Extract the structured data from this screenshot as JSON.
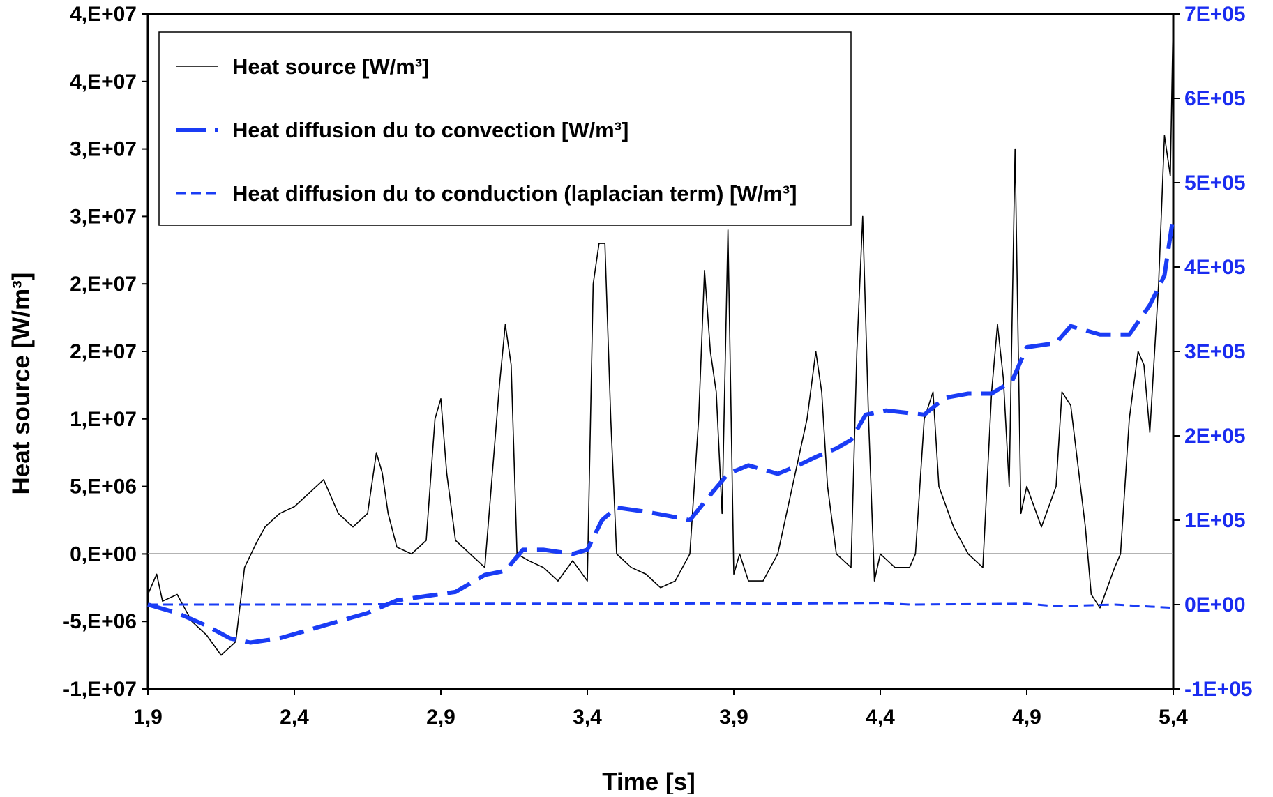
{
  "chart_data": {
    "type": "line",
    "xlabel": "Time [s]",
    "ylabel": "Heat source [W/m³]",
    "xlim": [
      1.9,
      5.4
    ],
    "ylim": [
      -10000000,
      40000000
    ],
    "y2lim": [
      -100000,
      700000
    ],
    "x_ticks": [
      "1,9",
      "2,4",
      "2,9",
      "3,4",
      "3,9",
      "4,4",
      "4,9",
      "5,4"
    ],
    "y_ticks": [
      "4,E+07",
      "4,E+07",
      "3,E+07",
      "3,E+07",
      "2,E+07",
      "2,E+07",
      "1,E+07",
      "5,E+06",
      "0,E+00",
      "-5,E+06",
      "-1,E+07"
    ],
    "y2_ticks": [
      "7E+05",
      "6E+05",
      "5E+05",
      "4E+05",
      "3E+05",
      "2E+05",
      "1E+05",
      "0E+00",
      "-1E+05"
    ],
    "grid": false,
    "legend_position": "top-left",
    "colors": {
      "source": "#000000",
      "convection": "#1a3cf5",
      "conduction": "#1a3cf5",
      "right_axis": "#1a2cf0",
      "zero_line": "#9a9a9a"
    },
    "series": [
      {
        "name": "Heat source [W/m³]",
        "axis": "left",
        "style": "thin-solid",
        "x": [
          1.9,
          1.93,
          1.95,
          2.0,
          2.05,
          2.1,
          2.15,
          2.2,
          2.23,
          2.27,
          2.3,
          2.35,
          2.4,
          2.45,
          2.5,
          2.55,
          2.6,
          2.65,
          2.68,
          2.7,
          2.72,
          2.75,
          2.8,
          2.85,
          2.88,
          2.9,
          2.92,
          2.95,
          3.0,
          3.05,
          3.1,
          3.12,
          3.14,
          3.16,
          3.2,
          3.25,
          3.3,
          3.35,
          3.4,
          3.42,
          3.44,
          3.46,
          3.48,
          3.5,
          3.55,
          3.6,
          3.65,
          3.7,
          3.75,
          3.78,
          3.8,
          3.82,
          3.84,
          3.86,
          3.88,
          3.9,
          3.92,
          3.95,
          4.0,
          4.05,
          4.1,
          4.15,
          4.18,
          4.2,
          4.22,
          4.25,
          4.3,
          4.32,
          4.34,
          4.36,
          4.38,
          4.4,
          4.45,
          4.5,
          4.52,
          4.55,
          4.58,
          4.6,
          4.65,
          4.7,
          4.75,
          4.78,
          4.8,
          4.82,
          4.84,
          4.86,
          4.88,
          4.9,
          4.95,
          5.0,
          5.02,
          5.05,
          5.1,
          5.12,
          5.15,
          5.2,
          5.22,
          5.25,
          5.28,
          5.3,
          5.32,
          5.35,
          5.37,
          5.39,
          5.4
        ],
        "y": [
          -3000000,
          -1500000,
          -3500000,
          -3000000,
          -5000000,
          -6000000,
          -7500000,
          -6500000,
          -1000000,
          800000,
          2000000,
          3000000,
          3500000,
          4500000,
          5500000,
          3000000,
          2000000,
          3000000,
          7500000,
          6000000,
          3000000,
          500000,
          0,
          1000000,
          10000000,
          11500000,
          6000000,
          1000000,
          0,
          -1000000,
          12500000,
          17000000,
          14000000,
          0,
          -500000,
          -1000000,
          -2000000,
          -500000,
          -2000000,
          20000000,
          23000000,
          23000000,
          10000000,
          0,
          -1000000,
          -1500000,
          -2500000,
          -2000000,
          0,
          10000000,
          21000000,
          15000000,
          12000000,
          3000000,
          24000000,
          -1500000,
          0,
          -2000000,
          -2000000,
          0,
          5000000,
          10000000,
          15000000,
          12000000,
          5000000,
          0,
          -1000000,
          15000000,
          25000000,
          10000000,
          -2000000,
          0,
          -1000000,
          -1000000,
          0,
          10000000,
          12000000,
          5000000,
          2000000,
          0,
          -1000000,
          12000000,
          17000000,
          13000000,
          5000000,
          30000000,
          3000000,
          5000000,
          2000000,
          5000000,
          12000000,
          11000000,
          2000000,
          -3000000,
          -4000000,
          -1000000,
          0,
          10000000,
          15000000,
          14000000,
          9000000,
          20000000,
          31000000,
          28000000,
          40000000
        ]
      },
      {
        "name": "Heat diffusion du to convection [W/m³]",
        "axis": "right",
        "style": "thick-dash",
        "x": [
          1.9,
          2.0,
          2.1,
          2.18,
          2.25,
          2.35,
          2.45,
          2.55,
          2.65,
          2.75,
          2.85,
          2.95,
          3.05,
          3.12,
          3.18,
          3.25,
          3.35,
          3.4,
          3.45,
          3.5,
          3.6,
          3.68,
          3.75,
          3.82,
          3.88,
          3.95,
          4.05,
          4.12,
          4.18,
          4.25,
          4.3,
          4.35,
          4.42,
          4.55,
          4.62,
          4.7,
          4.78,
          4.85,
          4.9,
          5.0,
          5.05,
          5.15,
          5.25,
          5.32,
          5.37,
          5.4
        ],
        "y": [
          0,
          -10000,
          -25000,
          -40000,
          -45000,
          -40000,
          -30000,
          -20000,
          -10000,
          5000,
          10000,
          15000,
          35000,
          40000,
          65000,
          65000,
          60000,
          65000,
          100000,
          115000,
          110000,
          105000,
          100000,
          130000,
          155000,
          165000,
          155000,
          165000,
          175000,
          185000,
          195000,
          225000,
          230000,
          225000,
          245000,
          250000,
          250000,
          265000,
          305000,
          310000,
          330000,
          320000,
          320000,
          355000,
          390000,
          460000
        ]
      },
      {
        "name": "Heat diffusion du to conduction (laplacian term) [W/m³]",
        "axis": "right",
        "style": "thin-dash",
        "x": [
          1.9,
          2.0,
          2.5,
          3.0,
          3.5,
          3.9,
          4.0,
          4.4,
          4.5,
          4.9,
          5.0,
          5.2,
          5.3,
          5.4
        ],
        "y": [
          0,
          0,
          0,
          1000,
          1000,
          1500,
          1000,
          2000,
          0,
          1000,
          -2000,
          0,
          -2000,
          -4000
        ]
      }
    ]
  }
}
